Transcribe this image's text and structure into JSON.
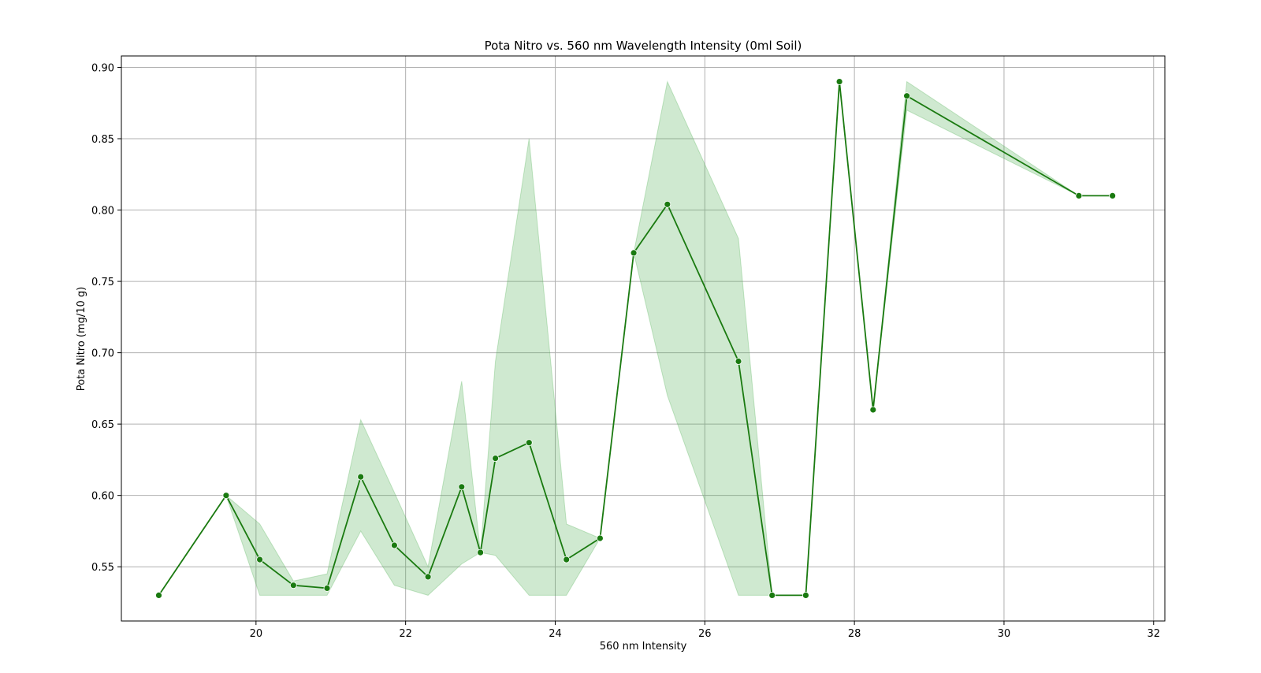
{
  "chart_data": {
    "type": "line",
    "title": "Pota Nitro vs. 560 nm Wavelength Intensity (0ml Soil)",
    "xlabel": "560 nm Intensity",
    "ylabel": "Pota Nitro (mg/10 g)",
    "xlim": [
      18.2,
      32.15
    ],
    "ylim": [
      0.512,
      0.908
    ],
    "xticks": [
      20,
      22,
      24,
      26,
      28,
      30,
      32
    ],
    "yticks": [
      0.55,
      0.6,
      0.65,
      0.7,
      0.75,
      0.8,
      0.85,
      0.9
    ],
    "grid": true,
    "colors": {
      "line": "#1a7a10",
      "band": "#4caf50"
    },
    "series": [
      {
        "x": [
          18.7,
          19.6,
          20.05,
          20.5,
          20.95,
          21.4,
          21.85,
          22.3,
          22.75,
          23.0,
          23.2,
          23.65,
          24.15,
          24.6,
          25.05,
          25.5,
          26.45,
          26.9,
          27.35,
          27.8,
          28.25,
          28.7,
          31.0,
          31.45
        ],
        "y": [
          0.53,
          0.6,
          0.555,
          0.537,
          0.535,
          0.613,
          0.565,
          0.543,
          0.606,
          0.56,
          0.626,
          0.637,
          0.555,
          0.57,
          0.77,
          0.804,
          0.694,
          0.53,
          0.53,
          0.89,
          0.66,
          0.88,
          0.81,
          0.81
        ],
        "ci_low": [
          0.53,
          0.6,
          0.53,
          0.53,
          0.53,
          0.575,
          0.537,
          0.53,
          0.552,
          0.56,
          0.558,
          0.53,
          0.53,
          0.57,
          0.77,
          0.67,
          0.53,
          0.53,
          0.53,
          0.89,
          0.66,
          0.87,
          0.81,
          0.81
        ],
        "ci_high": [
          0.53,
          0.6,
          0.58,
          0.54,
          0.545,
          0.653,
          0.602,
          0.55,
          0.68,
          0.56,
          0.694,
          0.85,
          0.58,
          0.57,
          0.77,
          0.89,
          0.78,
          0.53,
          0.53,
          0.89,
          0.66,
          0.89,
          0.81,
          0.81
        ]
      }
    ]
  }
}
